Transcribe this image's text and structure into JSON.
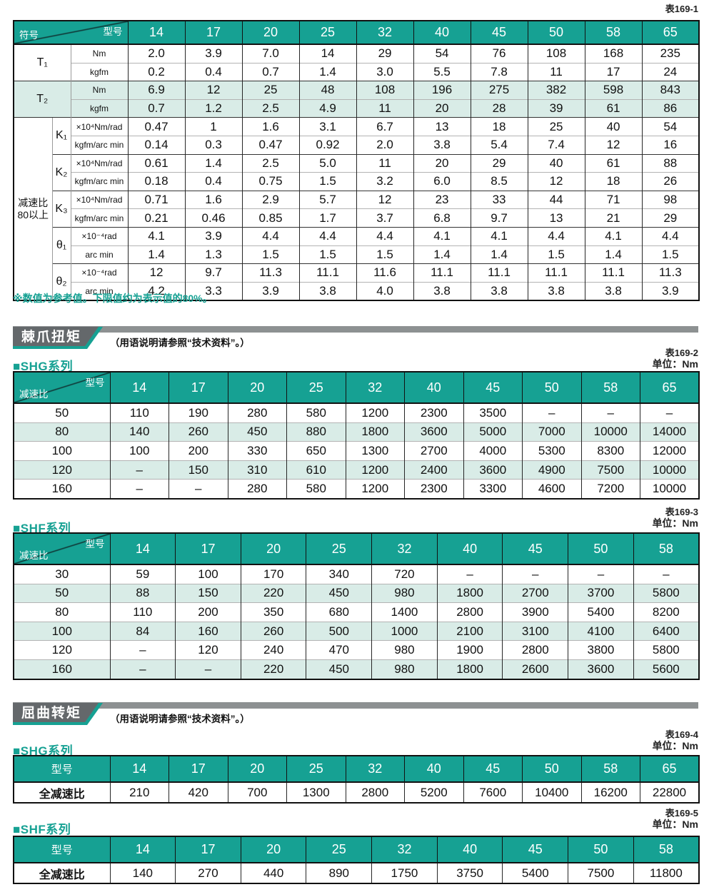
{
  "colors": {
    "teal": "#16a193",
    "row_shade": "#d9ece7",
    "strip_gray": "#8d9192",
    "block_gray": "#64686b",
    "border_dark": "#111111"
  },
  "sections": {
    "ratchet": {
      "title": "棘爪扭矩",
      "note": "（用语说明请参照“技术资料”。）"
    },
    "buckling": {
      "title": "屈曲转矩",
      "note": "（用语说明请参照“技术资料”。）"
    }
  },
  "tables": {
    "spec": {
      "ref": "表169-1",
      "corner": {
        "top": "型号",
        "bottom": "符号"
      },
      "models": [
        "14",
        "17",
        "20",
        "25",
        "32",
        "40",
        "45",
        "50",
        "58",
        "65"
      ],
      "group_label_lines": [
        "减速比",
        "80以上"
      ],
      "footnote": "※数值为参考值。下限值约为表示值的80%。",
      "groups": [
        {
          "symbol": "T₁",
          "shaded": false,
          "span2": true,
          "rows": [
            {
              "unit": "Nm",
              "values": [
                "2.0",
                "3.9",
                "7.0",
                "14",
                "29",
                "54",
                "76",
                "108",
                "168",
                "235"
              ]
            },
            {
              "unit": "kgfm",
              "values": [
                "0.2",
                "0.4",
                "0.7",
                "1.4",
                "3.0",
                "5.5",
                "7.8",
                "11",
                "17",
                "24"
              ]
            }
          ]
        },
        {
          "symbol": "T₂",
          "shaded": true,
          "span2": true,
          "rows": [
            {
              "unit": "Nm",
              "values": [
                "6.9",
                "12",
                "25",
                "48",
                "108",
                "196",
                "275",
                "382",
                "598",
                "843"
              ]
            },
            {
              "unit": "kgfm",
              "values": [
                "0.7",
                "1.2",
                "2.5",
                "4.9",
                "11",
                "20",
                "28",
                "39",
                "61",
                "86"
              ]
            }
          ]
        },
        {
          "symbol": "K₁",
          "shaded": false,
          "span2": false,
          "rows": [
            {
              "unit": "×10⁴Nm/rad",
              "values": [
                "0.47",
                "1",
                "1.6",
                "3.1",
                "6.7",
                "13",
                "18",
                "25",
                "40",
                "54"
              ]
            },
            {
              "unit": "kgfm/arc min",
              "values": [
                "0.14",
                "0.3",
                "0.47",
                "0.92",
                "2.0",
                "3.8",
                "5.4",
                "7.4",
                "12",
                "16"
              ]
            }
          ]
        },
        {
          "symbol": "K₂",
          "shaded": false,
          "span2": false,
          "rows": [
            {
              "unit": "×10⁴Nm/rad",
              "values": [
                "0.61",
                "1.4",
                "2.5",
                "5.0",
                "11",
                "20",
                "29",
                "40",
                "61",
                "88"
              ]
            },
            {
              "unit": "kgfm/arc min",
              "values": [
                "0.18",
                "0.4",
                "0.75",
                "1.5",
                "3.2",
                "6.0",
                "8.5",
                "12",
                "18",
                "26"
              ]
            }
          ]
        },
        {
          "symbol": "K₃",
          "shaded": false,
          "span2": false,
          "rows": [
            {
              "unit": "×10⁴Nm/rad",
              "values": [
                "0.71",
                "1.6",
                "2.9",
                "5.7",
                "12",
                "23",
                "33",
                "44",
                "71",
                "98"
              ]
            },
            {
              "unit": "kgfm/arc min",
              "values": [
                "0.21",
                "0.46",
                "0.85",
                "1.7",
                "3.7",
                "6.8",
                "9.7",
                "13",
                "21",
                "29"
              ]
            }
          ]
        },
        {
          "symbol": "θ₁",
          "shaded": false,
          "span2": false,
          "rows": [
            {
              "unit": "×10⁻⁴rad",
              "values": [
                "4.1",
                "3.9",
                "4.4",
                "4.4",
                "4.4",
                "4.1",
                "4.1",
                "4.4",
                "4.1",
                "4.4"
              ]
            },
            {
              "unit": "arc min",
              "values": [
                "1.4",
                "1.3",
                "1.5",
                "1.5",
                "1.5",
                "1.4",
                "1.4",
                "1.5",
                "1.4",
                "1.5"
              ]
            }
          ]
        },
        {
          "symbol": "θ₂",
          "shaded": false,
          "span2": false,
          "rows": [
            {
              "unit": "×10⁻⁴rad",
              "values": [
                "12",
                "9.7",
                "11.3",
                "11.1",
                "11.6",
                "11.1",
                "11.1",
                "11.1",
                "11.1",
                "11.3"
              ]
            },
            {
              "unit": "arc min",
              "values": [
                "4.2",
                "3.3",
                "3.9",
                "3.8",
                "4.0",
                "3.8",
                "3.8",
                "3.8",
                "3.8",
                "3.9"
              ]
            }
          ]
        }
      ]
    },
    "shg_ratchet": {
      "ref": "表169-2",
      "unit": "单位：Nm",
      "series": "■SHG系列",
      "corner": {
        "top": "型号",
        "bottom": "减速比"
      },
      "models": [
        "14",
        "17",
        "20",
        "25",
        "32",
        "40",
        "45",
        "50",
        "58",
        "65"
      ],
      "rows": [
        {
          "ratio": "50",
          "values": [
            "110",
            "190",
            "280",
            "580",
            "1200",
            "2300",
            "3500",
            "–",
            "–",
            "–"
          ]
        },
        {
          "ratio": "80",
          "values": [
            "140",
            "260",
            "450",
            "880",
            "1800",
            "3600",
            "5000",
            "7000",
            "10000",
            "14000"
          ]
        },
        {
          "ratio": "100",
          "values": [
            "100",
            "200",
            "330",
            "650",
            "1300",
            "2700",
            "4000",
            "5300",
            "8300",
            "12000"
          ]
        },
        {
          "ratio": "120",
          "values": [
            "–",
            "150",
            "310",
            "610",
            "1200",
            "2400",
            "3600",
            "4900",
            "7500",
            "10000"
          ]
        },
        {
          "ratio": "160",
          "values": [
            "–",
            "–",
            "280",
            "580",
            "1200",
            "2300",
            "3300",
            "4600",
            "7200",
            "10000"
          ]
        }
      ]
    },
    "shf_ratchet": {
      "ref": "表169-3",
      "unit": "单位：Nm",
      "series": "■SHF系列",
      "corner": {
        "top": "型号",
        "bottom": "减速比"
      },
      "models": [
        "14",
        "17",
        "20",
        "25",
        "32",
        "40",
        "45",
        "50",
        "58"
      ],
      "rows": [
        {
          "ratio": "30",
          "values": [
            "59",
            "100",
            "170",
            "340",
            "720",
            "–",
            "–",
            "–",
            "–"
          ]
        },
        {
          "ratio": "50",
          "values": [
            "88",
            "150",
            "220",
            "450",
            "980",
            "1800",
            "2700",
            "3700",
            "5800"
          ]
        },
        {
          "ratio": "80",
          "values": [
            "110",
            "200",
            "350",
            "680",
            "1400",
            "2800",
            "3900",
            "5400",
            "8200"
          ]
        },
        {
          "ratio": "100",
          "values": [
            "84",
            "160",
            "260",
            "500",
            "1000",
            "2100",
            "3100",
            "4100",
            "6400"
          ]
        },
        {
          "ratio": "120",
          "values": [
            "–",
            "120",
            "240",
            "470",
            "980",
            "1900",
            "2800",
            "3800",
            "5800"
          ]
        },
        {
          "ratio": "160",
          "values": [
            "–",
            "–",
            "220",
            "450",
            "980",
            "1800",
            "2600",
            "3600",
            "5600"
          ]
        }
      ]
    },
    "shg_buckling": {
      "ref": "表169-4",
      "unit": "单位：Nm",
      "series": "■SHG系列",
      "header_label": "型号",
      "row_label": "全减速比",
      "models": [
        "14",
        "17",
        "20",
        "25",
        "32",
        "40",
        "45",
        "50",
        "58",
        "65"
      ],
      "values": [
        "210",
        "420",
        "700",
        "1300",
        "2800",
        "5200",
        "7600",
        "10400",
        "16200",
        "22800"
      ]
    },
    "shf_buckling": {
      "ref": "表169-5",
      "unit": "单位：Nm",
      "series": "■SHF系列",
      "header_label": "型号",
      "row_label": "全减速比",
      "models": [
        "14",
        "17",
        "20",
        "25",
        "32",
        "40",
        "45",
        "50",
        "58"
      ],
      "values": [
        "140",
        "270",
        "440",
        "890",
        "1750",
        "3750",
        "5400",
        "7500",
        "11800"
      ]
    }
  }
}
